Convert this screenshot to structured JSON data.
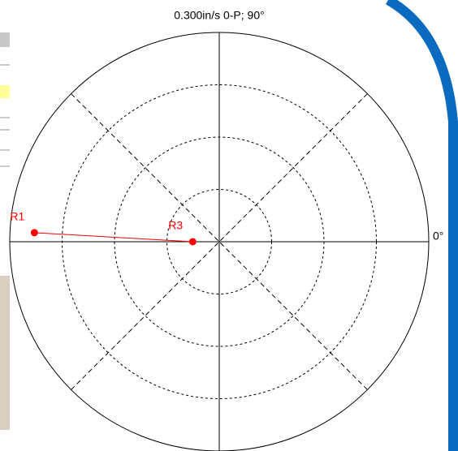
{
  "chart_data": {
    "type": "polar",
    "title": "0.300in/s 0-P; 90°",
    "angle_label": "0°",
    "rlim": [
      0,
      0.3
    ],
    "rticks": [
      0.075,
      0.15,
      0.225,
      0.3
    ],
    "color": "#ff0000",
    "points": [
      {
        "label": "R1",
        "r": 0.265,
        "theta": 177.2
      },
      {
        "label": "R3",
        "r": 0.038,
        "theta": 180
      }
    ]
  }
}
